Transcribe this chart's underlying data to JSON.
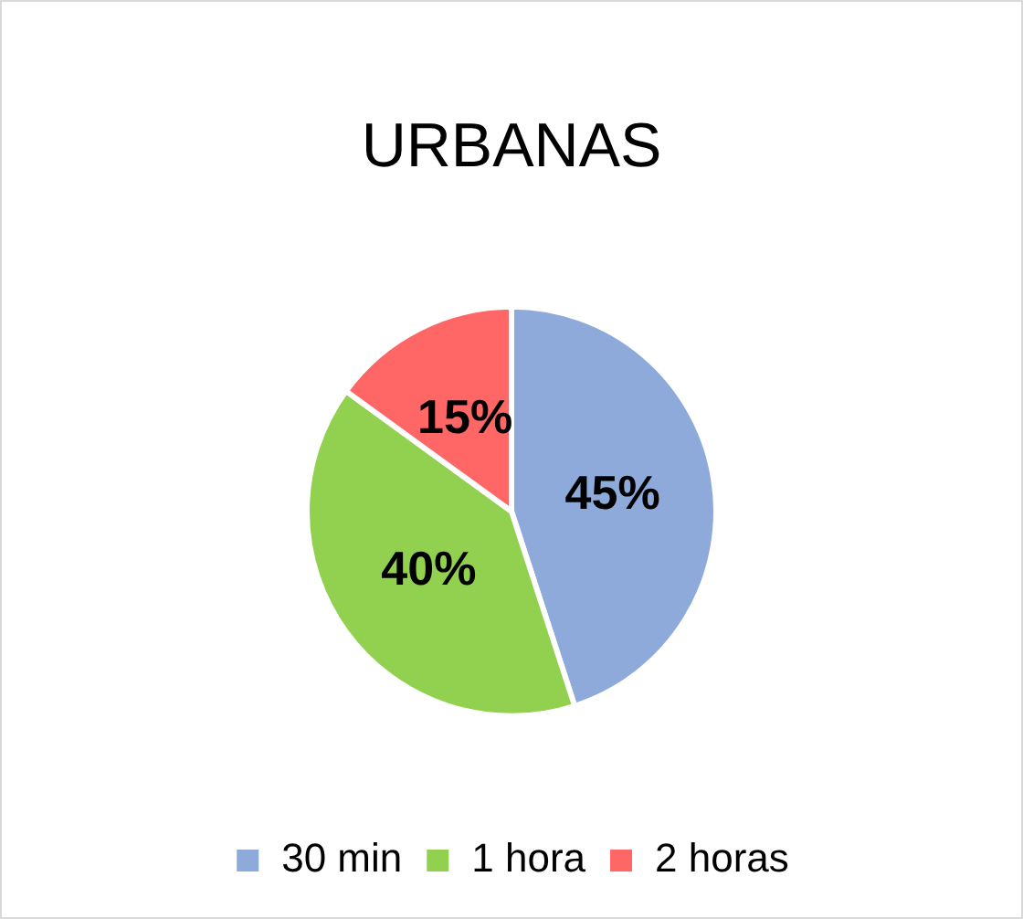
{
  "chart_data": {
    "type": "pie",
    "title": "URBANAS",
    "categories": [
      "30 min",
      "1 hora",
      "2 horas"
    ],
    "values": [
      45,
      40,
      15
    ],
    "colors": [
      "#8eaadb",
      "#92d050",
      "#ff6666"
    ],
    "value_labels": [
      "45%",
      "40%",
      "15%"
    ],
    "legend": "bottom"
  }
}
